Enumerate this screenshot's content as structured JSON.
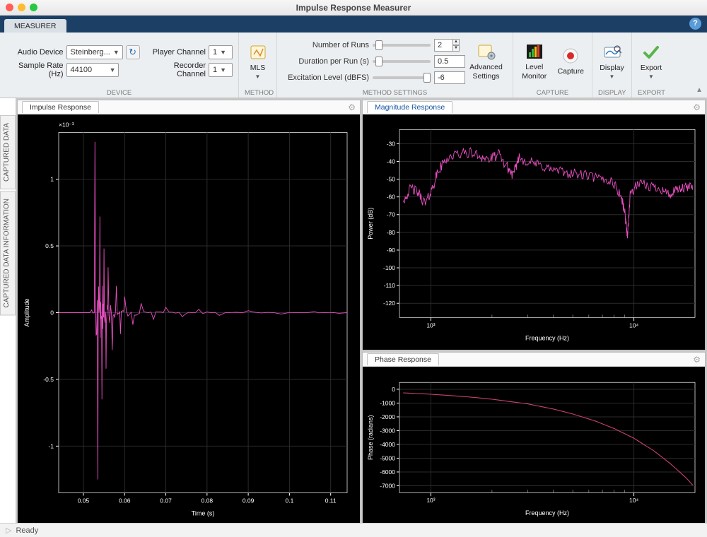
{
  "window": {
    "title": "Impulse Response Measurer"
  },
  "tab": {
    "label": "MEASURER"
  },
  "device_group": {
    "label": "DEVICE",
    "audio_device_label": "Audio Device",
    "audio_device_value": "Steinberg...",
    "sample_rate_label": "Sample Rate (Hz)",
    "sample_rate_value": "44100",
    "player_channel_label": "Player Channel",
    "player_channel_value": "1",
    "recorder_channel_label": "Recorder Channel",
    "recorder_channel_value": "1"
  },
  "method_group": {
    "label": "METHOD",
    "mls_label": "MLS"
  },
  "settings_group": {
    "label": "METHOD SETTINGS",
    "num_runs_label": "Number of Runs",
    "num_runs_value": "2",
    "duration_label": "Duration per Run (s)",
    "duration_value": "0.5",
    "excitation_label": "Excitation Level (dBFS)",
    "excitation_value": "-6",
    "advanced_label": "Advanced\nSettings",
    "num_runs_thumb_pct": 5,
    "duration_thumb_pct": 5,
    "excitation_thumb_pct": 88
  },
  "capture_group": {
    "label": "CAPTURE",
    "level_monitor_label": "Level\nMonitor",
    "capture_label": "Capture"
  },
  "display_group": {
    "label": "DISPLAY",
    "display_label": "Display"
  },
  "export_group": {
    "label": "EXPORT",
    "export_label": "Export"
  },
  "sidebar": {
    "captured_data": "CAPTURED DATA",
    "captured_info": "CAPTURED DATA INFORMATION"
  },
  "status": {
    "text": "Ready"
  },
  "panels": {
    "impulse": {
      "title": "Impulse Response"
    },
    "magnitude": {
      "title": "Magnitude Response"
    },
    "phase": {
      "title": "Phase Response"
    }
  },
  "impulse_chart": {
    "type": "line",
    "background_color": "#000000",
    "axes_color": "#ffffff",
    "grid_color": "#2a2a2a",
    "line_color": "#e94fc2",
    "xlabel": "Time (s)",
    "ylabel": "Amplitude",
    "exponent_label": "×10⁻³",
    "xlim": [
      0.044,
      0.114
    ],
    "ylim": [
      -1.35,
      1.35
    ],
    "xticks": [
      0.05,
      0.06,
      0.07,
      0.08,
      0.09,
      0.1,
      0.11
    ],
    "yticks": [
      -1,
      -0.5,
      0,
      0.5,
      1
    ],
    "label_fontsize": 9,
    "tick_fontsize": 8.5,
    "envelope": [
      [
        0.05,
        0
      ],
      [
        0.052,
        0.02
      ],
      [
        0.0528,
        1.28
      ],
      [
        0.0535,
        -1.25
      ],
      [
        0.054,
        0.72
      ],
      [
        0.0545,
        -0.65
      ],
      [
        0.055,
        0.48
      ],
      [
        0.0555,
        -0.42
      ],
      [
        0.056,
        0.34
      ],
      [
        0.057,
        -0.28
      ],
      [
        0.058,
        0.2
      ],
      [
        0.059,
        -0.16
      ],
      [
        0.06,
        0.12
      ],
      [
        0.062,
        -0.09
      ],
      [
        0.064,
        0.07
      ],
      [
        0.067,
        -0.05
      ],
      [
        0.07,
        0.04
      ],
      [
        0.074,
        -0.03
      ],
      [
        0.078,
        0.025
      ],
      [
        0.083,
        -0.02
      ],
      [
        0.09,
        0.015
      ],
      [
        0.098,
        -0.01
      ],
      [
        0.106,
        0.008
      ],
      [
        0.112,
        -0.005
      ]
    ]
  },
  "magnitude_chart": {
    "type": "line",
    "xscale": "log",
    "background_color": "#000000",
    "axes_color": "#ffffff",
    "grid_color": "#2a2a2a",
    "line_color": "#e94fc2",
    "xlabel": "Frequency (Hz)",
    "ylabel": "Power (dB)",
    "xlim": [
      700,
      20000
    ],
    "ylim": [
      -128,
      -22
    ],
    "xticks": [
      1000,
      10000
    ],
    "xtick_labels": [
      "10³",
      "10⁴"
    ],
    "yticks": [
      -30,
      -40,
      -50,
      -60,
      -70,
      -80,
      -90,
      -100,
      -110,
      -120
    ],
    "label_fontsize": 9,
    "tick_fontsize": 8.5,
    "points": [
      [
        730,
        -62
      ],
      [
        800,
        -55
      ],
      [
        870,
        -58
      ],
      [
        940,
        -64
      ],
      [
        1010,
        -56
      ],
      [
        1080,
        -46
      ],
      [
        1200,
        -38
      ],
      [
        1350,
        -36
      ],
      [
        1550,
        -35
      ],
      [
        1750,
        -37
      ],
      [
        1950,
        -39
      ],
      [
        2150,
        -36
      ],
      [
        2400,
        -44
      ],
      [
        2550,
        -48
      ],
      [
        2700,
        -38
      ],
      [
        3000,
        -40
      ],
      [
        3400,
        -42
      ],
      [
        3800,
        -44
      ],
      [
        4400,
        -46
      ],
      [
        5100,
        -47
      ],
      [
        5900,
        -48
      ],
      [
        6800,
        -50
      ],
      [
        7800,
        -51
      ],
      [
        8600,
        -59
      ],
      [
        9000,
        -68
      ],
      [
        9300,
        -82
      ],
      [
        9600,
        -58
      ],
      [
        10500,
        -53
      ],
      [
        12000,
        -54
      ],
      [
        13500,
        -55
      ],
      [
        15000,
        -59
      ],
      [
        16500,
        -56
      ],
      [
        18000,
        -55
      ],
      [
        19500,
        -54
      ]
    ],
    "noise_amp_db": 3.0
  },
  "phase_chart": {
    "type": "line",
    "xscale": "log",
    "background_color": "#000000",
    "axes_color": "#ffffff",
    "grid_color": "#2a2a2a",
    "line_color": "#c9416e",
    "xlabel": "Frequency (Hz)",
    "ylabel": "Phase (radians)",
    "xlim": [
      700,
      20000
    ],
    "ylim": [
      -7500,
      500
    ],
    "xticks": [
      1000,
      10000
    ],
    "xtick_labels": [
      "10³",
      "10⁴"
    ],
    "yticks": [
      0,
      -1000,
      -2000,
      -3000,
      -4000,
      -5000,
      -6000,
      -7000
    ],
    "label_fontsize": 9,
    "tick_fontsize": 8.5,
    "points": [
      [
        730,
        -260
      ],
      [
        1000,
        -360
      ],
      [
        1500,
        -540
      ],
      [
        2000,
        -720
      ],
      [
        3000,
        -1060
      ],
      [
        4000,
        -1430
      ],
      [
        5000,
        -1790
      ],
      [
        6500,
        -2320
      ],
      [
        8000,
        -2850
      ],
      [
        10000,
        -3550
      ],
      [
        12500,
        -4450
      ],
      [
        15000,
        -5350
      ],
      [
        18000,
        -6400
      ],
      [
        19500,
        -6950
      ]
    ]
  }
}
